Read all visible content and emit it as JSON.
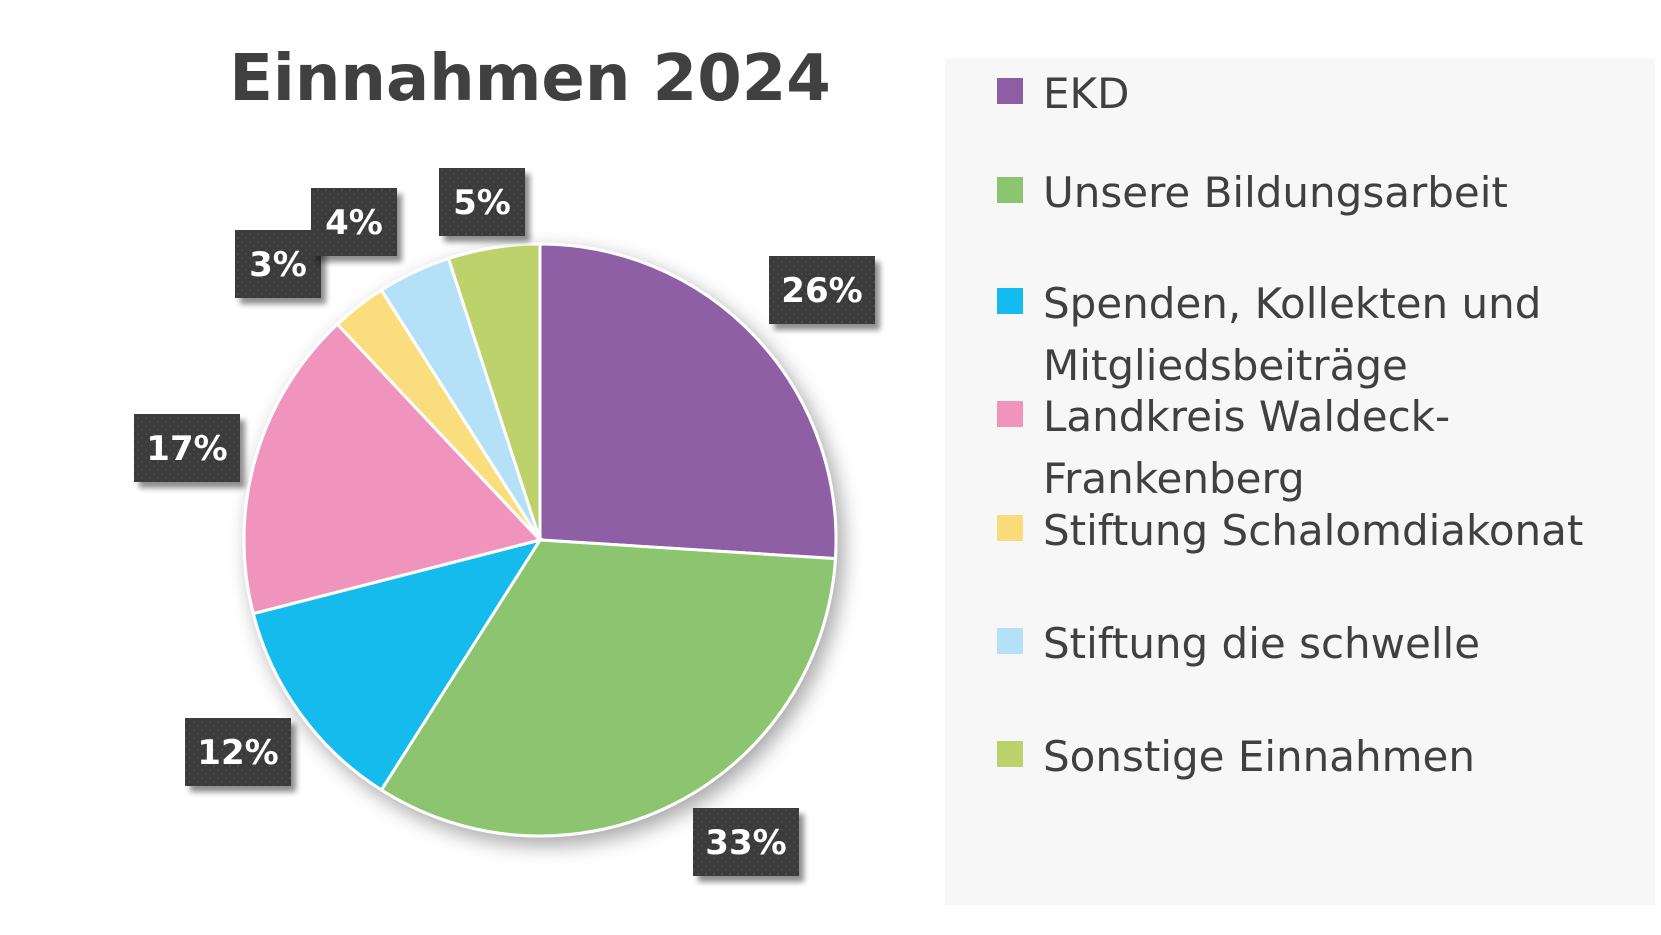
{
  "chart_data": {
    "type": "pie",
    "title": "Einnahmen 2024",
    "legend_position": "right",
    "slices": [
      {
        "name": "EKD",
        "value": 26,
        "label": "26%",
        "color": "#8e5ea5"
      },
      {
        "name": "Unsere Bildungsarbeit",
        "value": 33,
        "label": "33%",
        "color": "#8dc46f"
      },
      {
        "name": "Spenden, Kollekten und Mitgliedsbeiträge",
        "value": 12,
        "label": "12%",
        "color": "#13bbee"
      },
      {
        "name": "Landkreis Waldeck-Frankenberg",
        "value": 17,
        "label": "17%",
        "color": "#f094be"
      },
      {
        "name": "Stiftung Schalomdiakonat",
        "value": 3,
        "label": "3%",
        "color": "#fadd7b"
      },
      {
        "name": "Stiftung die schwelle",
        "value": 4,
        "label": "4%",
        "color": "#b4e0f8"
      },
      {
        "name": "Sonstige Einnahmen",
        "value": 5,
        "label": "5%",
        "color": "#bed26c"
      }
    ]
  }
}
